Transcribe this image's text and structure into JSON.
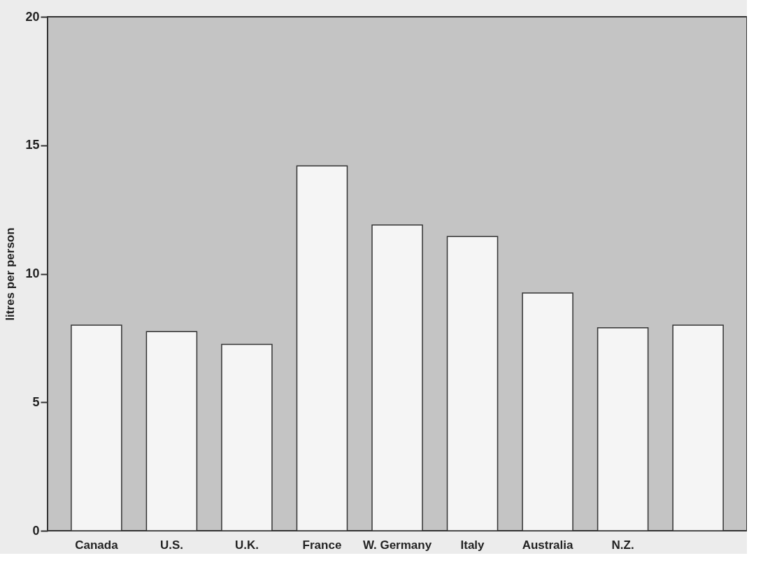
{
  "chart_data": {
    "type": "bar",
    "ylabel": "litres per person",
    "categories": [
      "Canada",
      "U.S.",
      "U.K.",
      "France",
      "W. Germany",
      "Italy",
      "Australia",
      "N.Z.",
      null
    ],
    "values": [
      8.0,
      7.75,
      7.25,
      14.2,
      11.9,
      11.45,
      9.25,
      7.9,
      8.0
    ],
    "color": "#f5f5f5",
    "ylim": [
      0,
      20
    ],
    "yticks": [
      0,
      5,
      10,
      15,
      20
    ],
    "grid": false
  }
}
